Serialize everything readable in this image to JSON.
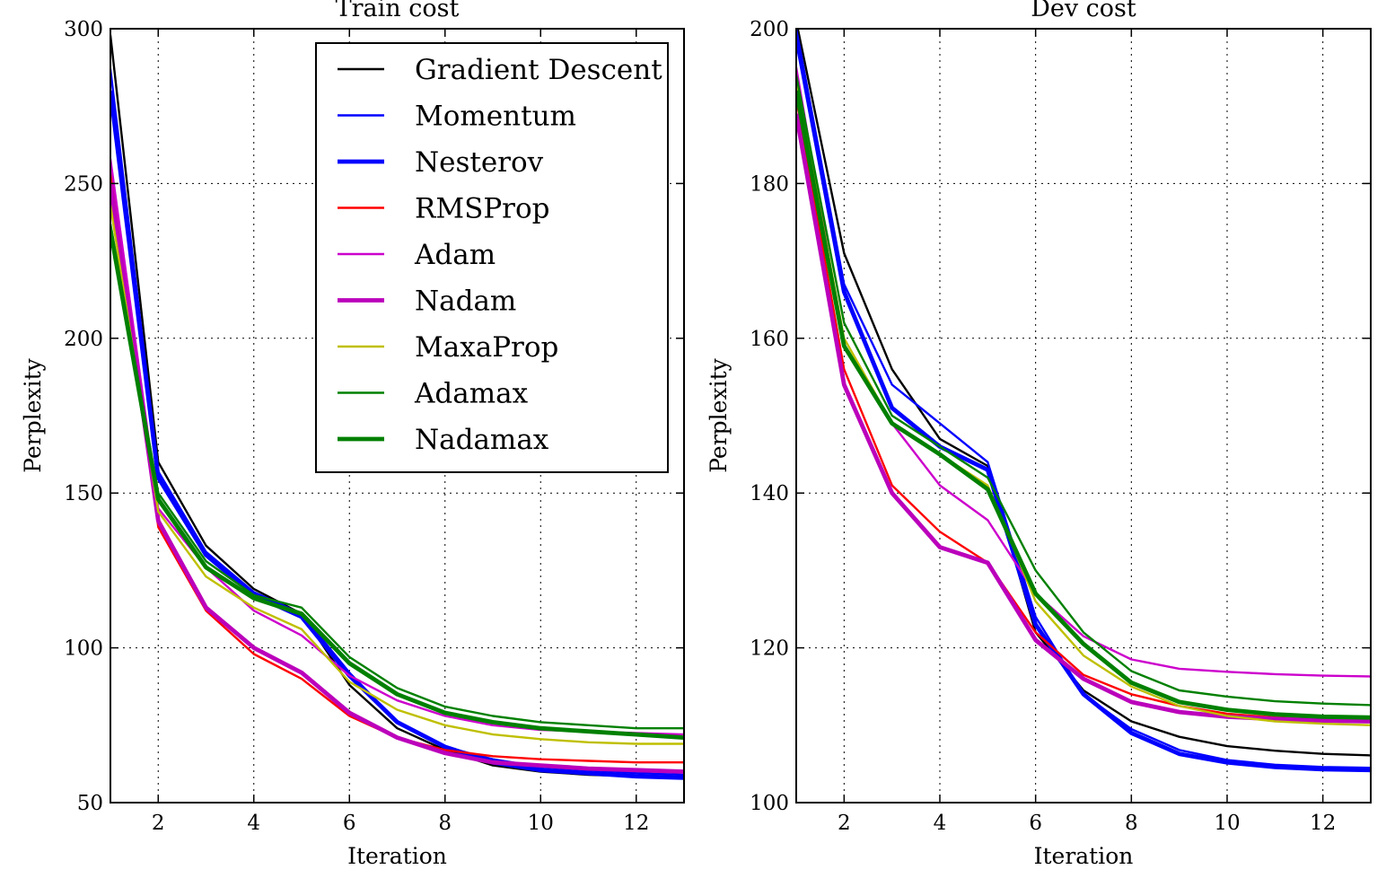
{
  "chart_data": [
    {
      "type": "line",
      "title": "Train cost",
      "xlabel": "Iteration",
      "ylabel": "Perplexity",
      "xlim": [
        1,
        13
      ],
      "ylim": [
        50,
        300
      ],
      "xticks": [
        2,
        4,
        6,
        8,
        10,
        12
      ],
      "yticks": [
        50,
        100,
        150,
        200,
        250,
        300
      ],
      "grid": true,
      "legend": "top-right",
      "x": [
        1,
        2,
        3,
        4,
        5,
        6,
        7,
        8,
        9,
        10,
        11,
        12,
        13
      ],
      "series": [
        {
          "name": "Gradient Descent",
          "color": "#000000",
          "width": 2,
          "values": [
            298,
            160,
            133,
            119,
            111,
            88,
            74,
            67,
            62,
            60,
            59,
            58.5,
            58
          ]
        },
        {
          "name": "Momentum",
          "color": "#0000ff",
          "width": 2,
          "values": [
            287,
            157,
            131,
            118,
            111,
            92,
            76,
            68,
            64,
            61.5,
            60.5,
            59.5,
            59
          ]
        },
        {
          "name": "Nesterov",
          "color": "#0000ff",
          "width": 4,
          "values": [
            280,
            155,
            130,
            117,
            110,
            91,
            76,
            68,
            63,
            60.5,
            59.5,
            58.5,
            58
          ]
        },
        {
          "name": "RMSProp",
          "color": "#ff0000",
          "width": 2,
          "values": [
            255,
            139,
            112,
            98,
            90,
            78,
            71,
            67,
            65,
            64,
            63.5,
            63,
            63
          ]
        },
        {
          "name": "Adam",
          "color": "#cc00cc",
          "width": 2,
          "values": [
            258,
            145,
            126,
            112,
            104,
            91,
            83,
            78,
            75,
            73.5,
            73,
            72.5,
            72
          ]
        },
        {
          "name": "Nadam",
          "color": "#bb00bb",
          "width": 4,
          "values": [
            250,
            141,
            113,
            100,
            92,
            79,
            71,
            66,
            63,
            62,
            61,
            60.5,
            60
          ]
        },
        {
          "name": "MaxaProp",
          "color": "#bfbf00",
          "width": 2,
          "values": [
            243,
            144,
            123,
            113,
            106,
            89,
            80,
            75,
            72,
            70.5,
            69.5,
            69,
            69
          ]
        },
        {
          "name": "Adamax",
          "color": "#008000",
          "width": 2,
          "values": [
            237,
            150,
            128,
            117,
            113,
            97,
            87,
            81,
            78,
            76,
            75,
            74,
            74
          ]
        },
        {
          "name": "Nadamax",
          "color": "#008000",
          "width": 4,
          "values": [
            235,
            148,
            126,
            116,
            111,
            95,
            85,
            79,
            76,
            74,
            73,
            72,
            71
          ]
        }
      ]
    },
    {
      "type": "line",
      "title": "Dev cost",
      "xlabel": "Iteration",
      "ylabel": "Perplexity",
      "xlim": [
        1,
        13
      ],
      "ylim": [
        100,
        200
      ],
      "xticks": [
        2,
        4,
        6,
        8,
        10,
        12
      ],
      "yticks": [
        100,
        120,
        140,
        160,
        180,
        200
      ],
      "grid": true,
      "x": [
        1,
        2,
        3,
        4,
        5,
        6,
        7,
        8,
        9,
        10,
        11,
        12,
        13
      ],
      "series": [
        {
          "name": "Gradient Descent",
          "color": "#000000",
          "width": 2,
          "values": [
            201,
            171,
            156,
            147,
            143.5,
            122,
            114.5,
            110.5,
            108.5,
            107.3,
            106.7,
            106.3,
            106.1
          ]
        },
        {
          "name": "Momentum",
          "color": "#0000ff",
          "width": 2,
          "values": [
            200,
            167,
            154,
            149,
            144,
            124,
            114,
            109.5,
            106.8,
            105.5,
            104.9,
            104.6,
            104.5
          ]
        },
        {
          "name": "Nesterov",
          "color": "#0000ff",
          "width": 4,
          "values": [
            199,
            166,
            151,
            146,
            143,
            123,
            114,
            109,
            106.3,
            105.2,
            104.6,
            104.3,
            104.2
          ]
        },
        {
          "name": "RMSProp",
          "color": "#ff0000",
          "width": 2,
          "values": [
            191,
            156,
            141,
            135,
            131,
            122,
            116.5,
            114,
            112.5,
            111.5,
            111,
            110.7,
            110.6
          ]
        },
        {
          "name": "Adam",
          "color": "#cc00cc",
          "width": 2,
          "values": [
            195,
            159,
            149,
            141,
            136.5,
            127,
            121.5,
            118.5,
            117.3,
            116.9,
            116.6,
            116.4,
            116.3
          ]
        },
        {
          "name": "Nadam",
          "color": "#bb00bb",
          "width": 4,
          "values": [
            189,
            154,
            140,
            133,
            131,
            121,
            116,
            113,
            111.7,
            111.1,
            110.8,
            110.6,
            110.5
          ]
        },
        {
          "name": "MaxaProp",
          "color": "#bfbf00",
          "width": 2,
          "values": [
            193,
            160,
            149,
            145,
            141,
            126,
            119,
            115,
            112.5,
            111.2,
            110.5,
            110.2,
            110
          ]
        },
        {
          "name": "Adamax",
          "color": "#008000",
          "width": 2,
          "values": [
            194,
            162,
            150,
            146,
            142,
            130,
            122,
            117,
            114.5,
            113.7,
            113.1,
            112.8,
            112.6
          ]
        },
        {
          "name": "Nadamax",
          "color": "#008000",
          "width": 4,
          "values": [
            192,
            159,
            149,
            145,
            140.5,
            127,
            120.5,
            115.5,
            113,
            112,
            111.4,
            111.1,
            111
          ]
        }
      ]
    }
  ]
}
